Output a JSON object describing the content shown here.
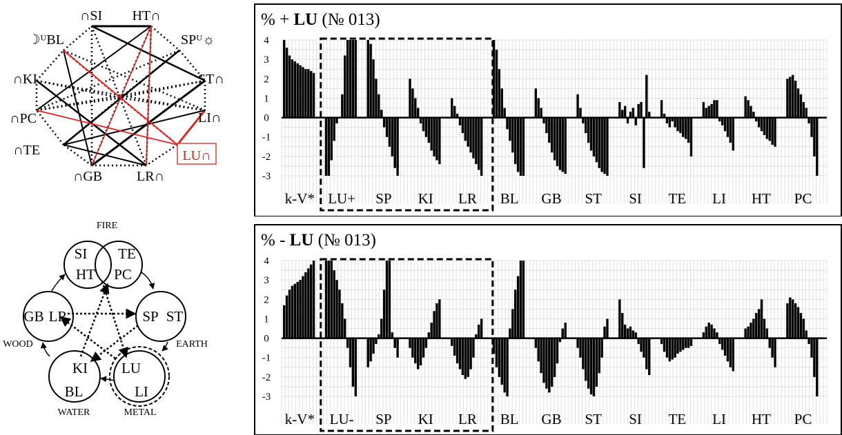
{
  "meridian_diagram": {
    "nodes": [
      {
        "key": "SI",
        "label": "∩SI"
      },
      {
        "key": "HT",
        "label": "HT∩"
      },
      {
        "key": "SP",
        "label": "SPᵁ☼"
      },
      {
        "key": "ST",
        "label": "ST∩"
      },
      {
        "key": "LI",
        "label": "LI∩"
      },
      {
        "key": "LU",
        "label": "LU∩"
      },
      {
        "key": "LR",
        "label": "LR∩"
      },
      {
        "key": "GB",
        "label": "∩GB"
      },
      {
        "key": "TE",
        "label": "∩TE"
      },
      {
        "key": "PC",
        "label": "∩PC"
      },
      {
        "key": "KI",
        "label": "∩KI"
      },
      {
        "key": "BL",
        "label": "☽ᵁBL"
      }
    ],
    "highlight_color": "#e02020"
  },
  "element_diagram": {
    "fire_label": "FIRE",
    "wood_label": "WOOD",
    "earth_label": "EARTH",
    "water_label": "WATER",
    "metal_label": "METAL",
    "fire_yin_upper": "SI",
    "fire_yang_upper": "TE",
    "fire_yin_lower": "HT",
    "fire_yang_lower": "PC",
    "wood_left": "GB",
    "wood_right": "LR",
    "earth_left": "SP",
    "earth_right": "ST",
    "water_upper": "KI",
    "water_lower": "BL",
    "metal_upper": "LU",
    "metal_lower": "LI"
  },
  "chart_data": [
    {
      "type": "bar",
      "title": "%  + LU (№ 013)",
      "title_prefix": "%  + ",
      "title_bold": "LU",
      "title_suffix": " (№ 013)",
      "ylim": [
        -3,
        4
      ],
      "yticks": [
        4,
        3,
        2,
        1,
        0,
        -1,
        -2,
        -3
      ],
      "grid": true,
      "categories": [
        "k-V*",
        "LU+",
        "SP",
        "KI",
        "LR",
        "BL",
        "GB",
        "ST",
        "SI",
        "TE",
        "LI",
        "HT",
        "PC"
      ],
      "highlight_box_categories": [
        "LU+",
        "SP",
        "KI",
        "LR"
      ],
      "series": [
        {
          "values": [
            [
              4.0,
              3.6,
              3.2,
              3.0,
              2.9,
              2.8,
              2.7,
              2.6,
              2.5,
              2.5,
              2.4,
              2.3
            ],
            [
              -3.0,
              -3.0,
              -2.2,
              -1.2,
              -0.3,
              0,
              1.2,
              3.2,
              4,
              4,
              4,
              4
            ],
            [
              4,
              3.8,
              3.0,
              2.0,
              1.2,
              0.4,
              -0.5,
              -1.0,
              -1.5,
              -2.0,
              -2.6,
              -3.0
            ],
            [
              2.0,
              1.5,
              1.0,
              0.5,
              -0.3,
              -0.7,
              -1.0,
              -1.3,
              -1.7,
              -2.0,
              -2.2,
              -2.4
            ],
            [
              1.0,
              0.6,
              0.2,
              -0.4,
              -0.8,
              -1.2,
              -1.5,
              -1.8,
              -2.1,
              -2.4,
              -2.7,
              -3.0
            ],
            [
              4,
              3.5,
              2.5,
              1.5,
              0.5,
              -0.6,
              -1.2,
              -1.8,
              -2.4,
              -2.8,
              -3.0,
              -3.0
            ],
            [
              1.5,
              1.0,
              0.5,
              -0.3,
              -0.8,
              -1.3,
              -1.8,
              -2.2,
              -2.5,
              -2.7,
              -2.8,
              -2.9
            ],
            [
              1.2,
              0.5,
              -0.3,
              -0.8,
              -1.3,
              -1.7,
              -2.0,
              -2.3,
              -2.6,
              -2.8,
              -2.9,
              -3.0
            ],
            [
              0.8,
              0.4,
              0.6,
              -0.3,
              0.3,
              0.5,
              -0.4,
              0.7,
              0.8,
              -2.6,
              2.2,
              0.3
            ],
            [
              0.9,
              0.2,
              -0.3,
              -0.5,
              -0.2,
              -0.5,
              -0.7,
              -0.8,
              -1.0,
              -1.1,
              -1.3,
              -2.0
            ],
            [
              0.8,
              0.5,
              0.6,
              0.7,
              0.9,
              0.9,
              -0.2,
              -0.4,
              -0.7,
              -1.0,
              -1.3,
              -1.7
            ],
            [
              1.1,
              0.9,
              0.6,
              0.3,
              -0.2,
              -0.5,
              -0.7,
              -0.9,
              -1.1,
              -1.2,
              -1.4,
              -1.5
            ],
            [
              2.0,
              2.1,
              2.2,
              1.9,
              1.5,
              1.2,
              0.8,
              0.5,
              -0.3,
              -1.0,
              -2.0,
              -3.0
            ]
          ]
        }
      ]
    },
    {
      "type": "bar",
      "title": "%  - LU (№ 013)",
      "title_prefix": "%  - ",
      "title_bold": "LU",
      "title_suffix": " (№ 013)",
      "ylim": [
        -3,
        4
      ],
      "yticks": [
        4,
        3,
        2,
        1,
        0,
        -1,
        -2,
        -3
      ],
      "grid": true,
      "categories": [
        "k-V*",
        "LU-",
        "SP",
        "KI",
        "LR",
        "BL",
        "GB",
        "ST",
        "SI",
        "TE",
        "LI",
        "HT",
        "PC"
      ],
      "highlight_box_categories": [
        "LU-",
        "SP",
        "KI",
        "LR"
      ],
      "series": [
        {
          "values": [
            [
              1.7,
              2.2,
              2.5,
              2.7,
              2.8,
              2.9,
              3.0,
              3.2,
              3.4,
              3.6,
              3.8,
              4.0
            ],
            [
              4,
              4,
              4,
              3.5,
              3.0,
              2.5,
              1.8,
              1.0,
              -0.5,
              -1.5,
              -2.5,
              -3.0
            ],
            [
              -1.5,
              -1.2,
              -0.8,
              -0.3,
              0.2,
              1.0,
              2.5,
              4,
              4,
              0.3,
              -0.5,
              -1.0
            ],
            [
              -0.5,
              -1.0,
              -1.3,
              -1.6,
              -1.4,
              -1.0,
              -0.5,
              0.3,
              0.8,
              1.4,
              1.8,
              2.0
            ],
            [
              -0.4,
              -0.9,
              -1.3,
              -1.6,
              -1.9,
              -2.1,
              -2.0,
              -1.6,
              -1.0,
              0.2,
              0.7,
              1.0
            ],
            [
              -0.8,
              -1.5,
              -2.0,
              -2.4,
              -2.8,
              -3.0,
              0.5,
              1.5,
              2.5,
              3.2,
              4,
              4
            ],
            [
              -0.5,
              -1.2,
              -1.8,
              -2.3,
              -2.6,
              -2.8,
              -2.5,
              -2.0,
              -1.3,
              -0.2,
              0.5,
              0.8
            ],
            [
              -0.5,
              -1.0,
              -1.6,
              -2.2,
              -2.6,
              -2.9,
              -3.0,
              -2.5,
              -1.8,
              -1.0,
              0.6,
              1.0
            ],
            [
              2.0,
              1.3,
              0.7,
              0.5,
              0.6,
              0.4,
              0.3,
              -0.3,
              -0.7,
              -1.0,
              -1.6,
              -1.9
            ],
            [
              -0.3,
              -0.7,
              -1.0,
              -1.2,
              -1.1,
              -1.0,
              -0.8,
              -0.7,
              -0.6,
              -0.5,
              -0.5,
              -0.4
            ],
            [
              0.3,
              0.6,
              0.8,
              0.7,
              0.5,
              0.3,
              -0.3,
              -0.6,
              -0.9,
              -1.2,
              -1.5,
              -1.7
            ],
            [
              0.5,
              0.6,
              0.8,
              1.0,
              1.3,
              1.5,
              2.0,
              1.0,
              0.5,
              -0.5,
              -1.0,
              -1.5
            ],
            [
              1.8,
              2.1,
              2.0,
              1.8,
              1.6,
              1.3,
              1.0,
              0.4,
              -0.3,
              -1.0,
              -2.0,
              -3.0
            ]
          ]
        }
      ]
    }
  ]
}
